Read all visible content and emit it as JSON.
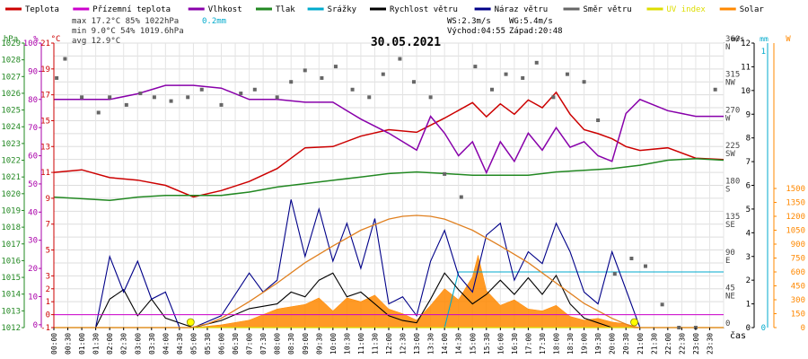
{
  "chart_data": {
    "type": "line",
    "title": "30.05.2021",
    "xlabel": "čas",
    "legend": [
      {
        "name": "Teplota",
        "color": "#cc0000"
      },
      {
        "name": "Přízemní teplota",
        "color": "#cc00cc"
      },
      {
        "name": "Vlhkost",
        "color": "#8800aa"
      },
      {
        "name": "Tlak",
        "color": "#228822"
      },
      {
        "name": "Srážky",
        "color": "#00aacc"
      },
      {
        "name": "Rychlost větru",
        "color": "#000000"
      },
      {
        "name": "Náraz větru",
        "color": "#000088"
      },
      {
        "name": "Směr větru",
        "color": "#666666"
      },
      {
        "name": "UV index",
        "color": "#dddd00"
      },
      {
        "name": "Solar",
        "color": "#ff8800"
      }
    ],
    "stats": {
      "max": "max 17.2°C  85%  1022hPa",
      "min": "min  9.0°C  54%  1019.6hPa",
      "avg": "avg 12.9°C",
      "rain": "0.2mm",
      "ws": "WS:2.3m/s",
      "wg": "WG:5.4m/s",
      "sunrise": "Východ:04:55",
      "sunset": "Západ:20:48"
    },
    "x_ticks": [
      "00:00",
      "00:30",
      "01:00",
      "01:30",
      "02:00",
      "02:30",
      "03:00",
      "03:30",
      "04:00",
      "04:30",
      "05:00",
      "05:30",
      "06:00",
      "06:30",
      "07:00",
      "07:30",
      "08:00",
      "08:30",
      "09:00",
      "09:30",
      "10:00",
      "10:30",
      "11:00",
      "11:30",
      "12:00",
      "12:30",
      "13:00",
      "13:30",
      "14:00",
      "14:30",
      "15:00",
      "15:30",
      "16:00",
      "16:30",
      "17:00",
      "17:30",
      "18:00",
      "18:30",
      "19:00",
      "19:30",
      "20:00",
      "20:30",
      "21:00",
      "21:30",
      "22:00",
      "22:30",
      "23:00",
      "23:30"
    ],
    "axes": {
      "pressure": {
        "label": "hPa",
        "min": 1012,
        "max": 1029,
        "ticks": [
          "1012",
          "1013",
          "1014",
          "1015",
          "1016",
          "1017",
          "1018",
          "1019",
          "1020",
          "1021",
          "1022",
          "1023",
          "1024",
          "1025",
          "1026",
          "1027",
          "1028",
          "1029"
        ]
      },
      "humidity": {
        "label": "%",
        "min": -1,
        "max": 100,
        "ticks": [
          "-1",
          "0",
          "2",
          "4",
          "7",
          "9",
          "11",
          "13",
          "15",
          "17",
          "19",
          "21"
        ]
      },
      "temperature": {
        "label": "°C",
        "min": -1,
        "max": 21,
        "ticks": [
          "-1",
          "0",
          "1",
          "2",
          "3",
          "5",
          "7",
          "9",
          "11",
          "13",
          "15",
          "17",
          "19",
          "21"
        ]
      },
      "hum_ticks": [
        "0",
        "10",
        "20",
        "30",
        "40",
        "50",
        "60",
        "70",
        "80",
        "90",
        "100"
      ],
      "direction": {
        "min": 0,
        "max": 360,
        "ticks": [
          "0",
          "45",
          "90",
          "135",
          "180",
          "225",
          "270",
          "315",
          "360"
        ],
        "labels": {
          "45": "NE",
          "90": "E",
          "135": "SE",
          "180": "S",
          "225": "SW",
          "270": "W",
          "315": "NW",
          "360": "N"
        }
      },
      "wind": {
        "label": "m/s",
        "min": 0,
        "max": 12,
        "ticks": [
          "0",
          "1",
          "2",
          "3",
          "4",
          "5",
          "6",
          "7",
          "8",
          "9",
          "10",
          "11",
          "12"
        ]
      },
      "rain": {
        "label": "mm",
        "min": 0,
        "max": 1,
        "ticks": [
          "0",
          "1"
        ]
      },
      "solar": {
        "label": "W",
        "min": 0,
        "max": 1500,
        "ticks": [
          "0",
          "150",
          "300",
          "450",
          "600",
          "750",
          "900",
          "1050",
          "1200",
          "1350",
          "1500"
        ]
      }
    },
    "series": [
      {
        "name": "Teplota",
        "unit": "°C",
        "x": [
          0,
          1,
          2,
          3,
          4,
          5,
          6,
          7,
          8,
          9,
          10,
          11,
          12,
          13,
          14,
          15,
          15.5,
          16,
          16.5,
          17,
          17.5,
          18,
          18.5,
          19,
          19.5,
          20,
          20.5,
          21,
          22,
          23,
          24
        ],
        "values": [
          11.0,
          11.2,
          10.6,
          10.4,
          10.0,
          9.1,
          9.6,
          10.3,
          11.3,
          12.9,
          13.0,
          13.8,
          14.3,
          14.1,
          15.2,
          16.4,
          15.3,
          16.3,
          15.5,
          16.6,
          16.0,
          17.2,
          15.5,
          14.3,
          14.0,
          13.6,
          13.0,
          12.7,
          12.9,
          12.1,
          12.0
        ]
      },
      {
        "name": "Vlhkost",
        "unit": "%",
        "x": [
          0,
          1,
          2,
          3,
          4,
          5,
          6,
          7,
          8,
          9,
          10,
          11,
          12,
          13,
          13.5,
          14,
          14.5,
          15,
          15.5,
          16,
          16.5,
          17,
          17.5,
          18,
          18.5,
          19,
          19.5,
          20,
          20.5,
          21,
          22,
          23,
          24
        ],
        "values": [
          80,
          80,
          80,
          82,
          85,
          85,
          84,
          80,
          80,
          79,
          79,
          73,
          68,
          62,
          74,
          68,
          60,
          65,
          54,
          65,
          58,
          68,
          62,
          70,
          63,
          65,
          60,
          58,
          75,
          80,
          76,
          74,
          74
        ]
      },
      {
        "name": "Tlak",
        "unit": "hPa",
        "x": [
          0,
          1,
          2,
          3,
          4,
          5,
          6,
          7,
          8,
          9,
          10,
          11,
          12,
          13,
          14,
          15,
          16,
          17,
          18,
          19,
          20,
          21,
          22,
          23,
          24
        ],
        "values": [
          1019.8,
          1019.7,
          1019.6,
          1019.8,
          1019.9,
          1019.9,
          1019.9,
          1020.1,
          1020.4,
          1020.6,
          1020.8,
          1021.0,
          1021.2,
          1021.3,
          1021.2,
          1021.1,
          1021.1,
          1021.1,
          1021.3,
          1021.4,
          1021.5,
          1021.7,
          1022.0,
          1022.1,
          1022.0
        ]
      },
      {
        "name": "Srážky",
        "unit": "mm",
        "x": [
          0,
          14,
          14.5,
          24
        ],
        "values": [
          0,
          0,
          0.2,
          0.2
        ]
      },
      {
        "name": "Rychlost větru",
        "unit": "m/s",
        "x": [
          0,
          1.5,
          2,
          2.5,
          3,
          3.5,
          4,
          5,
          6,
          7,
          8,
          8.5,
          9,
          9.5,
          10,
          10.5,
          11,
          11.5,
          12,
          12.5,
          13,
          13.5,
          14,
          14.5,
          15,
          15.5,
          16,
          16.5,
          17,
          17.5,
          18,
          18.5,
          19,
          19.5,
          20,
          21,
          22,
          24
        ],
        "values": [
          0,
          0,
          1.2,
          1.6,
          0.5,
          1.2,
          0.4,
          0,
          0.3,
          0.8,
          1.0,
          1.5,
          1.3,
          2.0,
          2.3,
          1.3,
          1.5,
          1.0,
          0.5,
          0.3,
          0.2,
          1.2,
          2.3,
          1.6,
          1.0,
          1.4,
          2.0,
          1.4,
          2.1,
          1.4,
          2.2,
          1.0,
          0.4,
          0.2,
          0,
          0,
          0,
          0
        ]
      },
      {
        "name": "Náraz větru",
        "unit": "m/s",
        "x": [
          0,
          1.5,
          2,
          2.5,
          3,
          3.5,
          4,
          4.5,
          5,
          6,
          7,
          7.5,
          8,
          8.5,
          9,
          9.5,
          10,
          10.5,
          11,
          11.5,
          12,
          12.5,
          13,
          13.5,
          14,
          14.5,
          15,
          15.5,
          16,
          16.5,
          17,
          17.5,
          18,
          18.5,
          19,
          19.5,
          20,
          21,
          22,
          24
        ],
        "values": [
          0,
          0,
          3.0,
          1.5,
          2.8,
          1.2,
          1.5,
          0,
          0,
          0.5,
          2.3,
          1.5,
          2.0,
          5.4,
          3.0,
          5.0,
          2.8,
          4.4,
          2.5,
          4.6,
          1.0,
          1.3,
          0.5,
          2.8,
          4.1,
          2.2,
          1.5,
          3.9,
          4.4,
          2.0,
          3.2,
          2.7,
          4.4,
          3.2,
          1.5,
          1.0,
          3.2,
          0,
          0,
          0
        ]
      },
      {
        "name": "Směr větru",
        "unit": "°",
        "x": [
          0.1,
          0.4,
          1.0,
          1.6,
          2.0,
          2.6,
          3.1,
          3.6,
          4.2,
          4.8,
          5.3,
          6.0,
          6.7,
          7.2,
          8.0,
          8.5,
          9.0,
          9.6,
          10.1,
          10.7,
          11.3,
          11.8,
          12.4,
          12.9,
          13.5,
          14.0,
          14.6,
          15.1,
          15.7,
          16.2,
          16.8,
          17.3,
          17.9,
          18.4,
          19.0,
          19.5,
          20.1,
          20.7,
          21.2,
          21.8,
          22.4,
          23.0,
          23.7
        ],
        "values": [
          325,
          350,
          300,
          280,
          300,
          290,
          305,
          300,
          295,
          300,
          310,
          290,
          305,
          310,
          300,
          320,
          335,
          325,
          340,
          310,
          300,
          330,
          350,
          320,
          300,
          200,
          170,
          340,
          310,
          330,
          325,
          345,
          300,
          330,
          320,
          270,
          70,
          90,
          80,
          30,
          0,
          0,
          310
        ]
      },
      {
        "name": "UV index",
        "unit": "",
        "x": [
          0,
          5,
          6,
          20,
          21,
          24
        ],
        "values": [
          0,
          0,
          0,
          0,
          0,
          0
        ]
      },
      {
        "name": "Solar",
        "unit": "W",
        "x": [
          0,
          4.9,
          5.5,
          6,
          7,
          8,
          9,
          10,
          11,
          12,
          12.5,
          13,
          13.5,
          14,
          15,
          16,
          17,
          18,
          19,
          20,
          20.8,
          24
        ],
        "values": [
          0,
          0,
          40,
          100,
          280,
          480,
          700,
          880,
          1050,
          1170,
          1200,
          1210,
          1200,
          1170,
          1050,
          880,
          700,
          480,
          260,
          100,
          0,
          0
        ]
      },
      {
        "name": "Solar (measured)",
        "unit": "W",
        "x": [
          0,
          5,
          6,
          7,
          8,
          9,
          9.5,
          10,
          10.5,
          11,
          11.5,
          12,
          12.5,
          13,
          13.5,
          14,
          14.5,
          15,
          15.2,
          15.5,
          16,
          16.5,
          17,
          17.5,
          18,
          18.5,
          19,
          19.5,
          20,
          20.5,
          21,
          24
        ],
        "values": [
          0,
          0,
          30,
          80,
          200,
          250,
          320,
          180,
          320,
          280,
          350,
          200,
          150,
          80,
          240,
          420,
          300,
          550,
          780,
          400,
          240,
          300,
          200,
          180,
          240,
          120,
          80,
          100,
          60,
          40,
          0,
          0
        ]
      }
    ]
  }
}
